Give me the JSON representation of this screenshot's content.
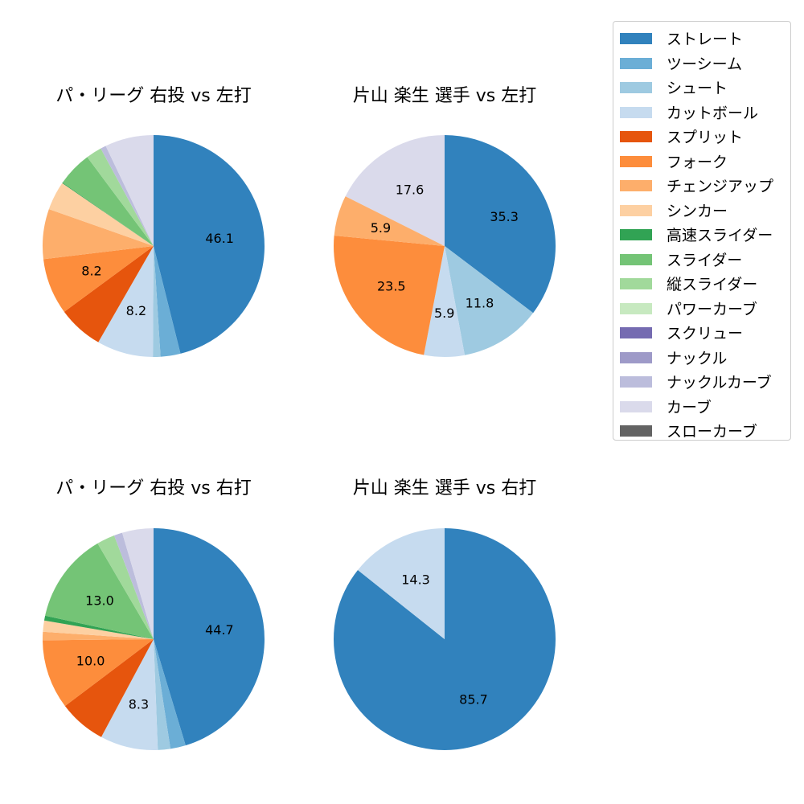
{
  "chart_data": [
    {
      "type": "pie",
      "title": "パ・リーグ 右投 vs 左打",
      "slices": [
        {
          "label": "ストレート",
          "value": 46.1,
          "data_label": "46.1"
        },
        {
          "label": "ツーシーム",
          "value": 2.9
        },
        {
          "label": "シュート",
          "value": 1.1
        },
        {
          "label": "カットボール",
          "value": 8.2,
          "data_label": "8.2"
        },
        {
          "label": "スプリット",
          "value": 6.6
        },
        {
          "label": "フォーク",
          "value": 8.2,
          "data_label": "8.2"
        },
        {
          "label": "チェンジアップ",
          "value": 7.3
        },
        {
          "label": "シンカー",
          "value": 4.2
        },
        {
          "label": "高速スライダー",
          "value": 0.1
        },
        {
          "label": "スライダー",
          "value": 5.1
        },
        {
          "label": "縦スライダー",
          "value": 2.3
        },
        {
          "label": "ナックルカーブ",
          "value": 0.8
        },
        {
          "label": "カーブ",
          "value": 7.1
        }
      ]
    },
    {
      "type": "pie",
      "title": "片山 楽生 選手 vs 左打",
      "slices": [
        {
          "label": "ストレート",
          "value": 35.3,
          "data_label": "35.3"
        },
        {
          "label": "シュート",
          "value": 11.8,
          "data_label": "11.8"
        },
        {
          "label": "カットボール",
          "value": 5.9,
          "data_label": "5.9"
        },
        {
          "label": "フォーク",
          "value": 23.5,
          "data_label": "23.5"
        },
        {
          "label": "チェンジアップ",
          "value": 5.9,
          "data_label": "5.9"
        },
        {
          "label": "カーブ",
          "value": 17.6,
          "data_label": "17.6"
        }
      ]
    },
    {
      "type": "pie",
      "title": "パ・リーグ 右投 vs 右打",
      "slices": [
        {
          "label": "ストレート",
          "value": 44.7,
          "data_label": "44.7"
        },
        {
          "label": "ツーシーム",
          "value": 2.2
        },
        {
          "label": "シュート",
          "value": 1.8
        },
        {
          "label": "カットボール",
          "value": 8.3,
          "data_label": "8.3"
        },
        {
          "label": "スプリット",
          "value": 6.8
        },
        {
          "label": "フォーク",
          "value": 10.0,
          "data_label": "10.0"
        },
        {
          "label": "チェンジアップ",
          "value": 1.2
        },
        {
          "label": "シンカー",
          "value": 1.6
        },
        {
          "label": "高速スライダー",
          "value": 0.7
        },
        {
          "label": "スライダー",
          "value": 13.0,
          "data_label": "13.0"
        },
        {
          "label": "縦スライダー",
          "value": 2.6
        },
        {
          "label": "ナックルカーブ",
          "value": 1.2
        },
        {
          "label": "カーブ",
          "value": 4.5
        }
      ]
    },
    {
      "type": "pie",
      "title": "片山 楽生 選手 vs 右打",
      "slices": [
        {
          "label": "ストレート",
          "value": 85.7,
          "data_label": "85.7"
        },
        {
          "label": "カットボール",
          "value": 14.3,
          "data_label": "14.3"
        }
      ]
    }
  ],
  "legend": {
    "placement": "upper-right",
    "items": [
      {
        "label": "ストレート",
        "color": "#3182bd"
      },
      {
        "label": "ツーシーム",
        "color": "#6baed6"
      },
      {
        "label": "シュート",
        "color": "#9ecae1"
      },
      {
        "label": "カットボール",
        "color": "#c6dbef"
      },
      {
        "label": "スプリット",
        "color": "#e6550d"
      },
      {
        "label": "フォーク",
        "color": "#fd8d3c"
      },
      {
        "label": "チェンジアップ",
        "color": "#fdae6b"
      },
      {
        "label": "シンカー",
        "color": "#fdd0a2"
      },
      {
        "label": "高速スライダー",
        "color": "#31a354"
      },
      {
        "label": "スライダー",
        "color": "#74c476"
      },
      {
        "label": "縦スライダー",
        "color": "#a1d99b"
      },
      {
        "label": "パワーカーブ",
        "color": "#c7e9c0"
      },
      {
        "label": "スクリュー",
        "color": "#756bb1"
      },
      {
        "label": "ナックル",
        "color": "#9e9ac8"
      },
      {
        "label": "ナックルカーブ",
        "color": "#bcbddc"
      },
      {
        "label": "カーブ",
        "color": "#dadaeb"
      },
      {
        "label": "スローカーブ",
        "color": "#636363"
      }
    ]
  }
}
